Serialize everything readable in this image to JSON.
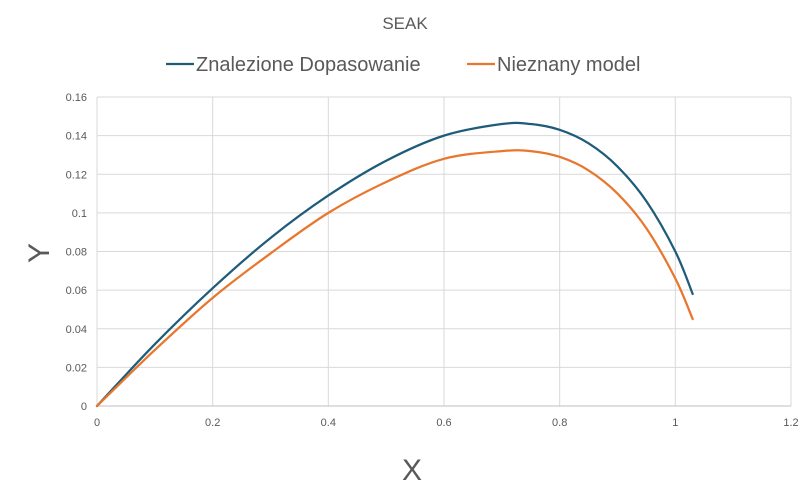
{
  "chart_data": {
    "type": "line",
    "title": "SEAK",
    "xlabel": "X",
    "ylabel": "Y",
    "xlim": [
      0,
      1.2
    ],
    "ylim": [
      0,
      0.16
    ],
    "x_ticks": [
      "0",
      "0.2",
      "0.4",
      "0.6",
      "0.8",
      "1",
      "1.2"
    ],
    "y_ticks": [
      "0",
      "0.02",
      "0.04",
      "0.06",
      "0.08",
      "0.1",
      "0.12",
      "0.14",
      "0.16"
    ],
    "grid": true,
    "legend_position": "top",
    "series": [
      {
        "name": "Znalezione Dopasowanie",
        "color": "#1f5c7a",
        "x": [
          0,
          0.1,
          0.2,
          0.3,
          0.4,
          0.5,
          0.6,
          0.7,
          0.75,
          0.8,
          0.85,
          0.9,
          0.95,
          1.0,
          1.03
        ],
        "y": [
          0,
          0.032,
          0.061,
          0.087,
          0.109,
          0.127,
          0.14,
          0.146,
          0.146,
          0.143,
          0.136,
          0.124,
          0.106,
          0.08,
          0.058
        ]
      },
      {
        "name": "Nieznany model",
        "color": "#e8762d",
        "x": [
          0,
          0.1,
          0.2,
          0.3,
          0.4,
          0.5,
          0.6,
          0.7,
          0.75,
          0.8,
          0.85,
          0.9,
          0.95,
          1.0,
          1.03
        ],
        "y": [
          0,
          0.029,
          0.056,
          0.079,
          0.1,
          0.116,
          0.128,
          0.132,
          0.132,
          0.129,
          0.122,
          0.11,
          0.092,
          0.066,
          0.045
        ]
      }
    ]
  }
}
